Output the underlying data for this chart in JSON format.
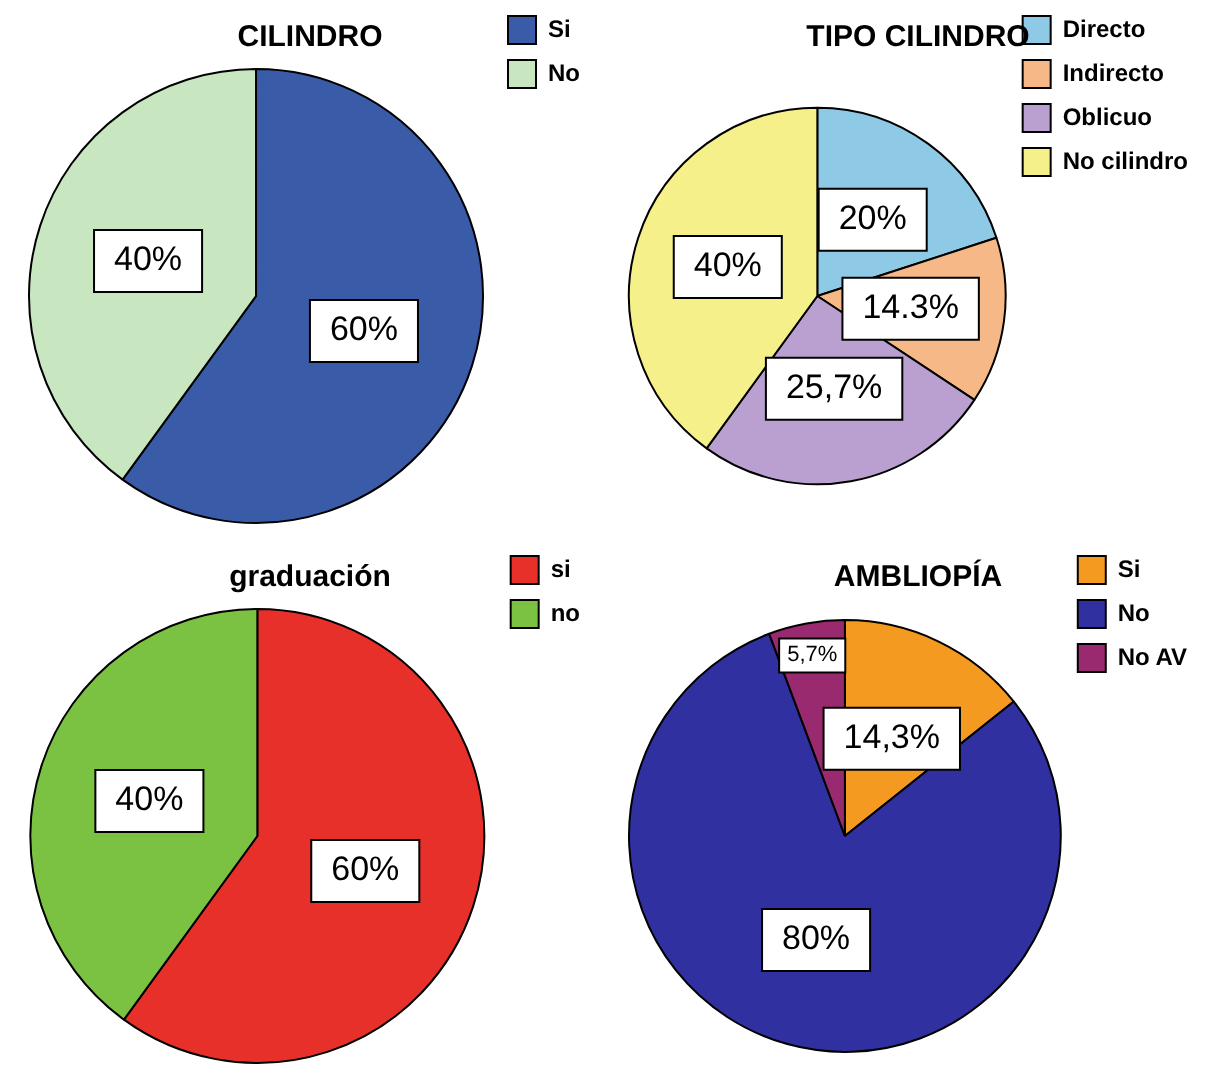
{
  "chart_data": [
    {
      "type": "pie",
      "title": "CILINDRO",
      "categories": [
        "Si",
        "No"
      ],
      "values": [
        60,
        40
      ],
      "colors": [
        "#3a5ca8",
        "#c8e6c0"
      ],
      "value_labels": [
        "60%",
        "40%"
      ],
      "legend": "right"
    },
    {
      "type": "pie",
      "title": "TIPO CILINDRO",
      "categories": [
        "Directo",
        "Indirecto",
        "Oblicuo",
        "No cilindro"
      ],
      "values": [
        20,
        14.3,
        25.7,
        40
      ],
      "colors": [
        "#8ecae6",
        "#f7b887",
        "#b9a0d0",
        "#f5f08a"
      ],
      "value_labels": [
        "20%",
        "14.3%",
        "25,7%",
        "40%"
      ],
      "legend": "right"
    },
    {
      "type": "pie",
      "title": "graduación",
      "categories": [
        "si",
        "no"
      ],
      "values": [
        60,
        40
      ],
      "colors": [
        "#e8302a",
        "#7cc242"
      ],
      "value_labels": [
        "60%",
        "40%"
      ],
      "legend": "right"
    },
    {
      "type": "pie",
      "title": "AMBLIOPÍA",
      "categories": [
        "Si",
        "No",
        "No AV"
      ],
      "values": [
        14.3,
        80,
        5.7
      ],
      "colors": [
        "#f59a20",
        "#3030a0",
        "#9a2a70"
      ],
      "value_labels": [
        "14,3%",
        "80%",
        "5,7%"
      ],
      "legend": "right"
    }
  ]
}
